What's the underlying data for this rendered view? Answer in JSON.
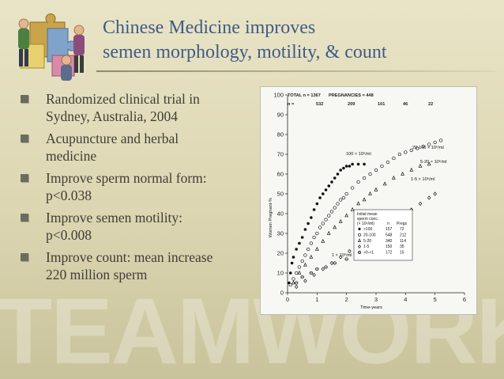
{
  "title": {
    "line1": "Chinese Medicine improves",
    "line2": "semen morphology, motility, & count"
  },
  "watermark": "TEAMWORK",
  "logo_icon": "puzzle-teamwork-icon",
  "bullets": [
    {
      "line1": "Randomized clinical trial in",
      "line2": "Sydney, Australia, 2004"
    },
    {
      "line1": "Acupuncture and herbal",
      "line2": "medicine"
    },
    {
      "line1": "Improve sperm normal form:",
      "line2": "p<0.038"
    },
    {
      "line1": "Improve semen motility:",
      "line2": "p<0.008"
    },
    {
      "line1": "Improve count: mean increase",
      "line2": "220 million sperm"
    }
  ],
  "colors": {
    "title": "#3f5b87",
    "text": "#3f3f38",
    "background": "#e3ddbc"
  },
  "figure": {
    "header": {
      "total_label": "TOTAL n = 1367",
      "pregnancies_label": "PREGNANCIES = 448",
      "n_label": "n =",
      "n_values": [
        "532",
        "209",
        "101",
        "46",
        "22"
      ]
    },
    "legend": {
      "title_lines": [
        "Initial mean",
        "sperm conc."
      ],
      "col_head": "(× 10⁶/ml)",
      "n_head": "n",
      "pregs_head": "Pregs",
      "rows": [
        {
          "symbol": "filled-circle",
          "range": ">100",
          "n": "157",
          "pregs": "72"
        },
        {
          "symbol": "open-circle",
          "range": "20-100",
          "n": "548",
          "pregs": "212"
        },
        {
          "symbol": "triangle",
          "range": "5-20",
          "n": "340",
          "pregs": "114"
        },
        {
          "symbol": "open-diamond",
          "range": "1-5",
          "n": "150",
          "pregs": "35"
        },
        {
          "symbol": "cross-circle",
          "range": ">0-<1",
          "n": "172",
          "pregs": "15"
        }
      ]
    },
    "annotations": [
      "100 × 10⁶/ml",
      "20-100 × 10⁶/ml",
      "5-20 × 10⁶/ml",
      "1-5 × 10⁶/ml",
      "1 × 10⁶/ml"
    ]
  },
  "chart_data": {
    "type": "scatter",
    "title": "",
    "xlabel": "Time-years",
    "ylabel": "Women Pregnant-%",
    "xlim": [
      0,
      6
    ],
    "ylim": [
      0,
      100
    ],
    "xticks": [
      0,
      1,
      2,
      3,
      4,
      5,
      6
    ],
    "yticks": [
      0,
      10,
      20,
      30,
      40,
      50,
      60,
      70,
      80,
      90,
      100
    ],
    "grid": false,
    "legend_position": "bottom-right",
    "series": [
      {
        "name": ">100",
        "symbol": "filled-circle",
        "x": [
          0.05,
          0.1,
          0.15,
          0.2,
          0.3,
          0.4,
          0.5,
          0.6,
          0.7,
          0.8,
          0.9,
          1.0,
          1.1,
          1.2,
          1.3,
          1.4,
          1.5,
          1.6,
          1.7,
          1.8,
          1.9,
          2.0,
          2.1,
          2.2,
          2.4,
          2.6
        ],
        "y": [
          5,
          10,
          15,
          18,
          22,
          25,
          28,
          32,
          35,
          38,
          42,
          45,
          48,
          50,
          52,
          54,
          56,
          58,
          60,
          62,
          63,
          64,
          64,
          65,
          65,
          65
        ]
      },
      {
        "name": "20-100",
        "symbol": "open-circle",
        "x": [
          0.1,
          0.2,
          0.3,
          0.4,
          0.5,
          0.6,
          0.7,
          0.8,
          0.9,
          1.0,
          1.1,
          1.2,
          1.3,
          1.4,
          1.5,
          1.6,
          1.7,
          1.8,
          1.9,
          2.0,
          2.2,
          2.4,
          2.6,
          2.8,
          3.0,
          3.2,
          3.4,
          3.6,
          3.8,
          4.0,
          4.2,
          4.4,
          4.6,
          4.8,
          5.0,
          5.2
        ],
        "y": [
          4,
          7,
          10,
          13,
          16,
          19,
          22,
          25,
          28,
          30,
          33,
          35,
          37,
          39,
          41,
          43,
          45,
          47,
          48,
          50,
          53,
          56,
          58,
          60,
          62,
          64,
          66,
          68,
          70,
          71,
          72,
          73,
          74,
          75,
          76,
          77
        ]
      },
      {
        "name": "5-20",
        "symbol": "triangle",
        "x": [
          0.2,
          0.4,
          0.6,
          0.8,
          1.0,
          1.2,
          1.4,
          1.6,
          1.8,
          2.0,
          2.2,
          2.4,
          2.6,
          2.8,
          3.0,
          3.3,
          3.6,
          3.9,
          4.2,
          4.5,
          4.8
        ],
        "y": [
          5,
          10,
          14,
          18,
          22,
          26,
          30,
          33,
          36,
          39,
          42,
          45,
          47,
          50,
          52,
          55,
          58,
          60,
          62,
          64,
          65
        ]
      },
      {
        "name": "1-5",
        "symbol": "open-diamond",
        "x": [
          0.3,
          0.6,
          0.9,
          1.2,
          1.5,
          1.8,
          2.1,
          2.4,
          2.7,
          3.0,
          3.3,
          3.6,
          3.9,
          4.2,
          4.5,
          4.8,
          5.0
        ],
        "y": [
          3,
          6,
          9,
          12,
          15,
          18,
          21,
          24,
          27,
          30,
          33,
          36,
          39,
          42,
          45,
          48,
          50
        ]
      },
      {
        "name": ">0-<1",
        "symbol": "cross-circle",
        "x": [
          0.3,
          0.5,
          0.8,
          1.0,
          1.3,
          1.6,
          2.0,
          2.3
        ],
        "y": [
          5,
          8,
          10,
          12,
          13,
          15,
          17,
          20
        ]
      }
    ]
  }
}
